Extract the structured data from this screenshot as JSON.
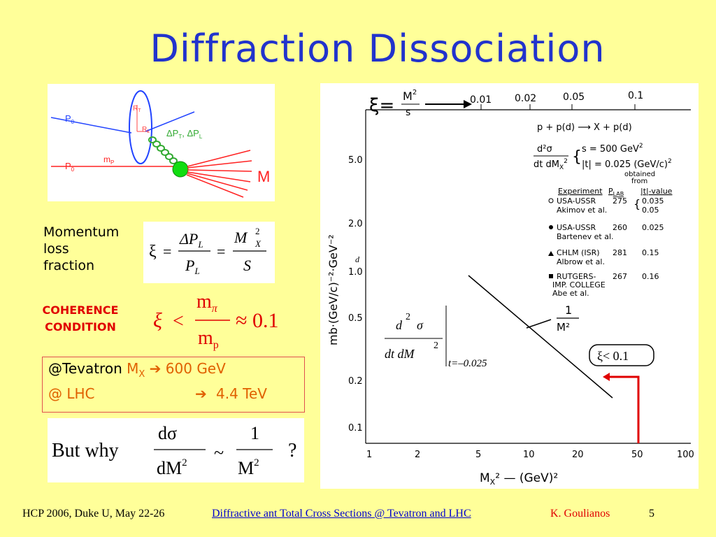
{
  "title": "Diffraction Dissociation",
  "diagram": {
    "p0_top": "P",
    "p0_sub": "0",
    "p0_bottom": "P",
    "p0_bottom_sub": "0",
    "rt": "R",
    "rt_sub": "T",
    "rl": "R",
    "rl_sub": "L",
    "dp_label": "ΔP",
    "dp_sub1": "T",
    "dp_mid": ", ΔP",
    "dp_sub2": "L",
    "mp": "m",
    "mp_sub": "P",
    "M": "M"
  },
  "momentum_label": [
    "Momentum",
    "loss",
    "fraction"
  ],
  "xi_formula": {
    "xi": "ξ",
    "eq": "=",
    "dP": "ΔP",
    "L": "L",
    "P": "P",
    "M": "M",
    "two": "2",
    "X": "X",
    "S": "S"
  },
  "coherence": [
    "COHERENCE",
    "CONDITION"
  ],
  "condition": {
    "xi": "ξ",
    "lt": "<",
    "m_pi": "m",
    "pi": "π",
    "m_p": "m",
    "p": "p",
    "approx": "≈ 0.1"
  },
  "tevatron": {
    "row1_at": "@Tevatron",
    "row1_mx": "M",
    "row1_x": "X",
    "row1_arrow": "➔",
    "row1_val": "600 GeV",
    "row2_at": "@ LHC",
    "row2_arrow": "➔",
    "row2_val": "4.4 TeV"
  },
  "why": {
    "but": "But why",
    "d_sigma": "dσ",
    "dM2": "dM",
    "two": "2",
    "tilde": "~",
    "one": "1",
    "M2": "M",
    "q": "?"
  },
  "plot": {
    "xi_label": "ξ=",
    "xi_frac_num": "M",
    "xi_frac_den": "s",
    "xi_two": "2",
    "xi_ticks": [
      "0.01",
      "0.02",
      "0.05",
      "0.1"
    ],
    "reaction": "p + p(d) ⟶ X + p(d)",
    "cross_num": "d²σ",
    "cross_den": "dt dM",
    "cross_den_sub": "X",
    "cross_den_sup": "2",
    "s_val": "s = 500 GeV",
    "s_sup": "2",
    "t_val": "|t| = 0.025 (GeV/c)",
    "t_sup": "2",
    "obtained": [
      "obtained",
      "from"
    ],
    "table_headers": [
      "Experiment",
      "P",
      "|t|-value"
    ],
    "plab_sub": "LAB",
    "table_rows": [
      {
        "exp": [
          "USA-USSR",
          "Akimov et al."
        ],
        "p": "275",
        "t": [
          "0.035",
          "0.05"
        ],
        "marker": "open"
      },
      {
        "exp": [
          "USA-USSR",
          "Bartenev et al."
        ],
        "p": "260",
        "t": [
          "0.025"
        ],
        "marker": "filled"
      },
      {
        "exp": [
          "CHLM (ISR)",
          "Albrow et al."
        ],
        "p": "281",
        "t": [
          "0.15"
        ],
        "marker": "triangle"
      },
      {
        "exp": [
          "RUTGERS-",
          "IMP. COLLEGE",
          "Abe et al."
        ],
        "p": "267",
        "t": [
          "0.16"
        ],
        "marker": "square"
      }
    ],
    "y_ticks": [
      "5.0",
      "2.0",
      "1.0",
      "0.5",
      "0.2",
      "0.1"
    ],
    "x_ticks": [
      "1",
      "2",
      "5",
      "10",
      "20",
      "50",
      "100"
    ],
    "ylabel": "mb·(GeV/c)⁻²·GeV⁻²",
    "xlabel": "M",
    "xlabel_sub": "X",
    "xlabel_rest": "² — (GeV)²",
    "one_over": "1",
    "one_over_den": "M²",
    "d_letter": "d",
    "inset": {
      "d": "d",
      "two": "2",
      "sigma": "σ",
      "den": "dt dM",
      "den_two": "2",
      "t_eq": "t=–0.025"
    },
    "xi_box": "ξ< 0.1"
  },
  "footer": {
    "conf": "HCP 2006, Duke U, May 22-26",
    "link": "Diffractive ant Total Cross Sections @ Tevatron and LHC",
    "author": "K. Goulianos",
    "page": "5"
  },
  "colors": {
    "background": "#ffff99",
    "title": "#2233cc",
    "orange": "#e06000",
    "red": "#e00000",
    "link": "#0000cc"
  }
}
